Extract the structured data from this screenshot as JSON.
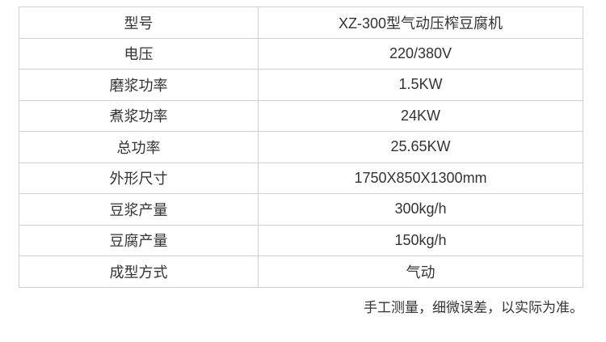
{
  "spec_table": {
    "rows": [
      {
        "label": "型号",
        "value": "XZ-300型气动压榨豆腐机"
      },
      {
        "label": "电压",
        "value": "220/380V"
      },
      {
        "label": "磨浆功率",
        "value": "1.5KW"
      },
      {
        "label": "煮浆功率",
        "value": "24KW"
      },
      {
        "label": "总功率",
        "value": "25.65KW"
      },
      {
        "label": "外形尺寸",
        "value": "1750X850X1300mm"
      },
      {
        "label": "豆浆产量",
        "value": "300kg/h"
      },
      {
        "label": "豆腐产量",
        "value": "150kg/h"
      },
      {
        "label": "成型方式",
        "value": "气动"
      }
    ]
  },
  "footnote": "手工测量，细微误差，以实际为准。"
}
